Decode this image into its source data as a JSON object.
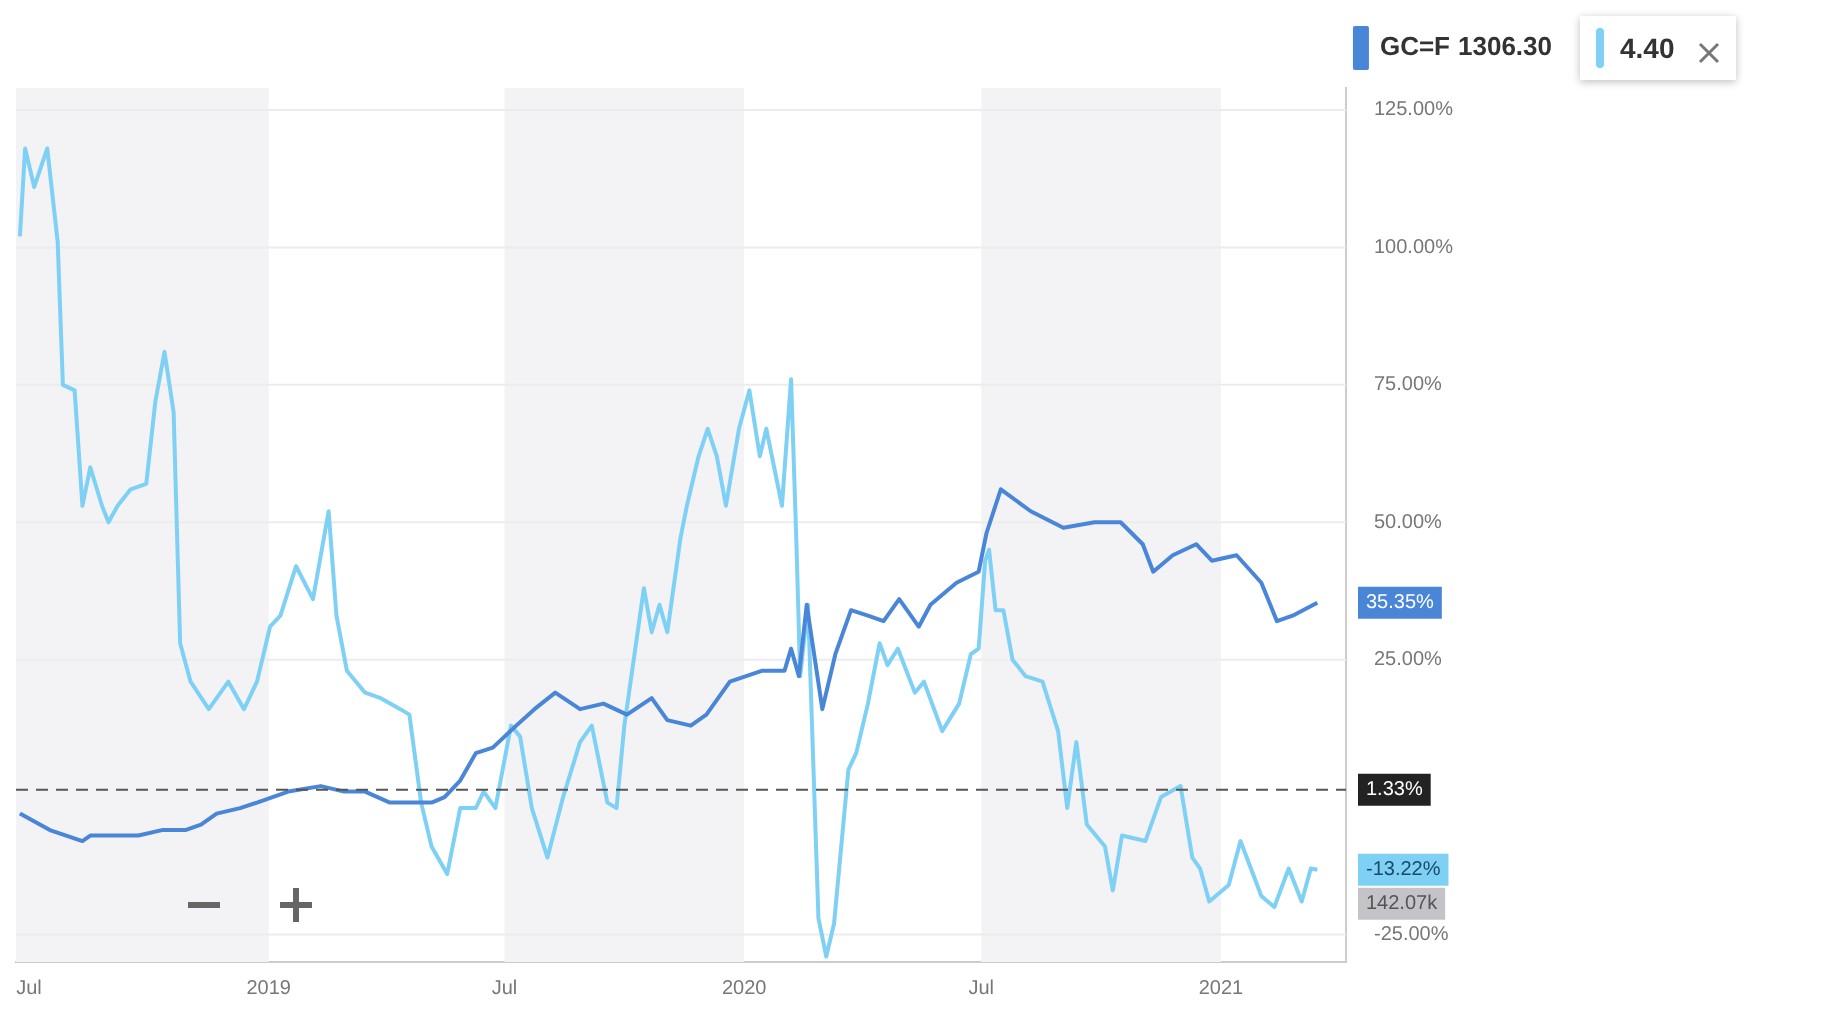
{
  "chart_data": {
    "type": "line",
    "xlim": [
      "2018-06-21",
      "2021-04-07"
    ],
    "ylim": [
      -30,
      129
    ],
    "xticks": [
      {
        "value": "2018-07",
        "label": "Jul"
      },
      {
        "value": "2019-01",
        "label": "2019"
      },
      {
        "value": "2019-07",
        "label": "Jul"
      },
      {
        "value": "2020-01",
        "label": "2020"
      },
      {
        "value": "2020-07",
        "label": "Jul"
      },
      {
        "value": "2021-01",
        "label": "2021"
      }
    ],
    "yticks": [
      {
        "value": -25,
        "label": "-25.00%"
      },
      {
        "value": 25,
        "label": "25.00%"
      },
      {
        "value": 50,
        "label": "50.00%"
      },
      {
        "value": 75,
        "label": "75.00%"
      },
      {
        "value": 100,
        "label": "100.00%"
      },
      {
        "value": 125,
        "label": "125.00%"
      }
    ],
    "grid": "y",
    "legend": "top right",
    "marker": "none",
    "series": [
      {
        "name": "GC=F",
        "color": "#4a86d8",
        "x": [
          "2018-06-24",
          "2018-07-17",
          "2018-08-11",
          "2018-08-17",
          "2018-09-05",
          "2018-09-23",
          "2018-10-11",
          "2018-10-29",
          "2018-11-10",
          "2018-11-22",
          "2018-12-10",
          "2018-12-23",
          "2019-01-16",
          "2019-02-10",
          "2019-02-28",
          "2019-03-16",
          "2019-04-04",
          "2019-05-06",
          "2019-05-16",
          "2019-05-28",
          "2019-06-09",
          "2019-06-22",
          "2019-07-10",
          "2019-07-24",
          "2019-08-09",
          "2019-08-28",
          "2019-09-15",
          "2019-10-03",
          "2019-10-22",
          "2019-11-03",
          "2019-11-21",
          "2019-12-03",
          "2019-12-21",
          "2020-01-15",
          "2020-02-01",
          "2020-02-06",
          "2020-02-12",
          "2020-02-18",
          "2020-03-01",
          "2020-03-11",
          "2020-03-23",
          "2020-04-05",
          "2020-04-17",
          "2020-04-29",
          "2020-05-14",
          "2020-05-23",
          "2020-06-12",
          "2020-06-29",
          "2020-07-05",
          "2020-07-16",
          "2020-08-08",
          "2020-09-02",
          "2020-09-26",
          "2020-10-16",
          "2020-11-02",
          "2020-11-10",
          "2020-11-25",
          "2020-12-13",
          "2020-12-25",
          "2021-01-13",
          "2021-02-01",
          "2021-02-13",
          "2021-02-25",
          "2021-03-16"
        ],
        "values": [
          -3,
          -6,
          -8,
          -7,
          -7,
          -7,
          -6,
          -6,
          -5,
          -3,
          -2,
          -1,
          1,
          2,
          1,
          1,
          -1,
          -1,
          0,
          3,
          8,
          9,
          13,
          16,
          19,
          16,
          17,
          15,
          18,
          14,
          13,
          15,
          21,
          23,
          23,
          27,
          22,
          35,
          16,
          26,
          34,
          33,
          32,
          36,
          31,
          35,
          39,
          41,
          48,
          56,
          52,
          49,
          50,
          50,
          46,
          41,
          44,
          46,
          43,
          44,
          39,
          32,
          33,
          35.35
        ]
      },
      {
        "color": "#7fd0f5",
        "x": [
          "2018-06-24",
          "2018-06-28",
          "2018-07-05",
          "2018-07-15",
          "2018-07-23",
          "2018-07-27",
          "2018-08-05",
          "2018-08-11",
          "2018-08-17",
          "2018-08-26",
          "2018-08-31",
          "2018-09-07",
          "2018-09-17",
          "2018-09-29",
          "2018-10-06",
          "2018-10-13",
          "2018-10-20",
          "2018-10-25",
          "2018-11-02",
          "2018-11-16",
          "2018-12-01",
          "2018-12-13",
          "2018-12-23",
          "2019-01-02",
          "2019-01-10",
          "2019-01-22",
          "2019-02-04",
          "2019-02-16",
          "2019-02-22",
          "2019-03-02",
          "2019-03-16",
          "2019-03-28",
          "2019-04-12",
          "2019-04-19",
          "2019-04-28",
          "2019-05-06",
          "2019-05-18",
          "2019-05-28",
          "2019-06-09",
          "2019-06-15",
          "2019-06-24",
          "2019-07-06",
          "2019-07-13",
          "2019-07-22",
          "2019-08-03",
          "2019-08-15",
          "2019-08-28",
          "2019-09-06",
          "2019-09-18",
          "2019-09-25",
          "2019-10-01",
          "2019-10-07",
          "2019-10-16",
          "2019-10-22",
          "2019-10-28",
          "2019-11-03",
          "2019-11-13",
          "2019-11-18",
          "2019-11-27",
          "2019-12-04",
          "2019-12-11",
          "2019-12-18",
          "2019-12-28",
          "2020-01-05",
          "2020-01-13",
          "2020-01-18",
          "2020-01-30",
          "2020-02-06",
          "2020-02-10",
          "2020-02-13",
          "2020-02-19",
          "2020-02-27",
          "2020-03-04",
          "2020-03-10",
          "2020-03-21",
          "2020-03-27",
          "2020-04-05",
          "2020-04-14",
          "2020-04-20",
          "2020-04-28",
          "2020-05-11",
          "2020-05-18",
          "2020-06-01",
          "2020-06-14",
          "2020-06-23",
          "2020-06-29",
          "2020-07-04",
          "2020-07-07",
          "2020-07-12",
          "2020-07-18",
          "2020-07-25",
          "2020-08-04",
          "2020-08-17",
          "2020-08-29",
          "2020-09-05",
          "2020-09-12",
          "2020-09-20",
          "2020-10-04",
          "2020-10-10",
          "2020-10-17",
          "2020-11-04",
          "2020-11-16",
          "2020-12-01",
          "2020-12-10",
          "2020-12-16",
          "2020-12-23",
          "2021-01-07",
          "2021-01-16",
          "2021-02-01",
          "2021-02-11",
          "2021-02-22",
          "2021-03-04",
          "2021-03-11",
          "2021-03-16"
        ],
        "values": [
          102,
          118,
          111,
          118,
          101,
          75,
          74,
          53,
          60,
          53,
          50,
          53,
          56,
          57,
          72,
          81,
          70,
          28,
          21,
          16,
          21,
          16,
          21,
          31,
          33,
          42,
          36,
          52,
          33,
          23,
          19,
          18,
          16,
          15,
          -1,
          -9,
          -14,
          -2,
          -2,
          1,
          -2,
          13,
          11,
          -2,
          -11,
          0,
          10,
          13,
          -1,
          -2,
          13,
          23,
          38,
          30,
          35,
          30,
          47,
          53,
          62,
          67,
          62,
          53,
          67,
          74,
          62,
          67,
          53,
          76,
          47,
          22,
          35,
          -22,
          -29,
          -23,
          5,
          8,
          17,
          28,
          24,
          27,
          19,
          21,
          12,
          17,
          26,
          27,
          43,
          45,
          34,
          34,
          25,
          22,
          21,
          12,
          -2,
          10,
          -5,
          -9,
          -17,
          -7,
          -8,
          0,
          2,
          -11,
          -13,
          -19,
          -16,
          -8,
          -18,
          -20,
          -13,
          -19,
          -13,
          -13.22
        ]
      }
    ],
    "ref_lines": [
      {
        "axis": "y",
        "value": 1.33,
        "label": "1.33%",
        "line_style": "dashed",
        "color": "#555555"
      }
    ],
    "bands": [
      {
        "axis": "x",
        "from": "2018-06-21",
        "to": "2019-01",
        "color": "#f3f3f5"
      },
      {
        "axis": "x",
        "from": "2019-07",
        "to": "2020-01",
        "color": "#f3f3f5"
      },
      {
        "axis": "x",
        "from": "2020-07",
        "to": "2021-01",
        "color": "#f3f3f5"
      }
    ],
    "annotations": [
      "1306.30",
      "4.40",
      {
        "text": "35.35%",
        "x": "2021-03-16",
        "y": 35.35
      },
      {
        "text": "-13.22%",
        "x": "2021-03-16",
        "y": -13.22
      },
      "142.07k"
    ]
  }
}
